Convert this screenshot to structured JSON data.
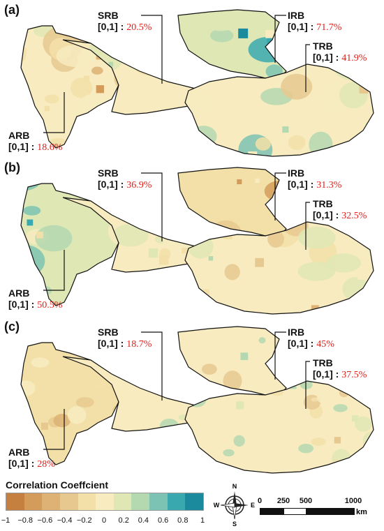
{
  "panels": [
    {
      "label": "(a)",
      "annotations": [
        {
          "basin": "SRB",
          "range": "[0,1] :",
          "pct": "20.5%"
        },
        {
          "basin": "IRB",
          "range": "[0,1] :",
          "pct": "71.7%"
        },
        {
          "basin": "TRB",
          "range": "[0,1] :",
          "pct": "41.9%"
        },
        {
          "basin": "ARB",
          "range": "[0,1] :",
          "pct": "18.6%"
        }
      ]
    },
    {
      "label": "(b)",
      "annotations": [
        {
          "basin": "SRB",
          "range": "[0,1] :",
          "pct": "36.9%"
        },
        {
          "basin": "IRB",
          "range": "[0,1] :",
          "pct": "31.3%"
        },
        {
          "basin": "TRB",
          "range": "[0,1] :",
          "pct": "32.5%"
        },
        {
          "basin": "ARB",
          "range": "[0,1] :",
          "pct": "50.5%"
        }
      ]
    },
    {
      "label": "(c)",
      "annotations": [
        {
          "basin": "SRB",
          "range": "[0,1] :",
          "pct": "18.7%"
        },
        {
          "basin": "IRB",
          "range": "[0,1] :",
          "pct": "45%"
        },
        {
          "basin": "TRB",
          "range": "[0,1] :",
          "pct": "37.5%"
        },
        {
          "basin": "ARB",
          "range": "[0,1] :",
          "pct": "28%"
        }
      ]
    }
  ],
  "legend": {
    "title": "Correlation Coeffcient",
    "ticks": [
      "−1",
      "−0.8",
      "−0.6",
      "−0.4",
      "−0.2",
      "0",
      "0.2",
      "0.4",
      "0.6",
      "0.8",
      "1"
    ],
    "colors": [
      "#c5803f",
      "#d39c5a",
      "#ddb274",
      "#e7c98f",
      "#f3e0a8",
      "#f7ebbf",
      "#dfe7b4",
      "#b4d8b0",
      "#7cc3b3",
      "#3aa9af",
      "#1b8a9c"
    ]
  },
  "compass": {
    "n": "N",
    "s": "S",
    "e": "E",
    "w": "W"
  },
  "scale": {
    "labels": [
      "0",
      "250",
      "500",
      "1000"
    ],
    "unit": "km"
  }
}
